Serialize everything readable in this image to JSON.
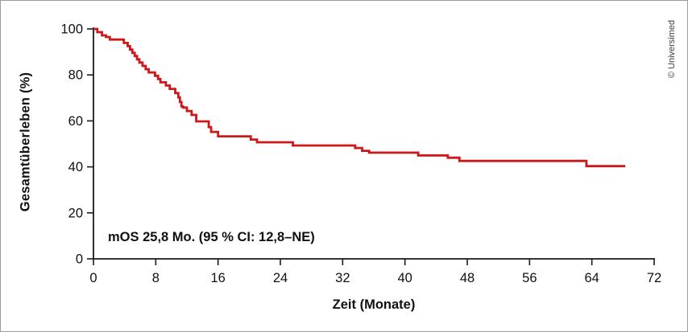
{
  "figure": {
    "credit": "© Universimed"
  },
  "chart_data": {
    "type": "line",
    "subtype": "kaplan-meier-step",
    "title": "",
    "xlabel": "Zeit (Monate)",
    "ylabel": "Gesamtüberleben (%)",
    "annotation": "mOS 25,8 Mo. (95 % CI: 12,8–NE)",
    "xlim": [
      0,
      72
    ],
    "ylim": [
      0,
      100
    ],
    "xticks": [
      0,
      8,
      16,
      24,
      32,
      40,
      48,
      56,
      64,
      72
    ],
    "yticks": [
      0,
      20,
      40,
      60,
      80,
      100
    ],
    "grid": false,
    "legend": "none",
    "line_color": "#cd1719",
    "axis_color": "#1a1a1a",
    "series": [
      {
        "name": "Gesamtüberleben",
        "points": [
          [
            0,
            100
          ],
          [
            0.5,
            98.6
          ],
          [
            1.1,
            97.2
          ],
          [
            1.6,
            96.5
          ],
          [
            2.1,
            95.4
          ],
          [
            3.9,
            93.9
          ],
          [
            4.4,
            92.5
          ],
          [
            4.7,
            91.0
          ],
          [
            5.0,
            89.6
          ],
          [
            5.3,
            88.2
          ],
          [
            5.6,
            86.8
          ],
          [
            5.9,
            85.4
          ],
          [
            6.3,
            83.9
          ],
          [
            6.7,
            82.5
          ],
          [
            7.1,
            81.1
          ],
          [
            7.9,
            79.6
          ],
          [
            8.3,
            78.2
          ],
          [
            8.6,
            76.8
          ],
          [
            9.3,
            75.4
          ],
          [
            9.8,
            73.9
          ],
          [
            10.5,
            72.1
          ],
          [
            10.9,
            70.2
          ],
          [
            11.1,
            68.2
          ],
          [
            11.3,
            66.3
          ],
          [
            11.5,
            65.8
          ],
          [
            12.0,
            64.3
          ],
          [
            12.6,
            62.6
          ],
          [
            13.2,
            59.8
          ],
          [
            14.8,
            57.3
          ],
          [
            15.1,
            55.2
          ],
          [
            16.0,
            53.3
          ],
          [
            20.2,
            51.9
          ],
          [
            21.0,
            50.7
          ],
          [
            25.6,
            49.3
          ],
          [
            33.6,
            48.2
          ],
          [
            34.5,
            47.0
          ],
          [
            35.4,
            46.2
          ],
          [
            41.7,
            45.0
          ],
          [
            45.5,
            44.0
          ],
          [
            47.0,
            42.6
          ],
          [
            63.3,
            40.3
          ],
          [
            68.3,
            40.3
          ]
        ]
      }
    ]
  }
}
